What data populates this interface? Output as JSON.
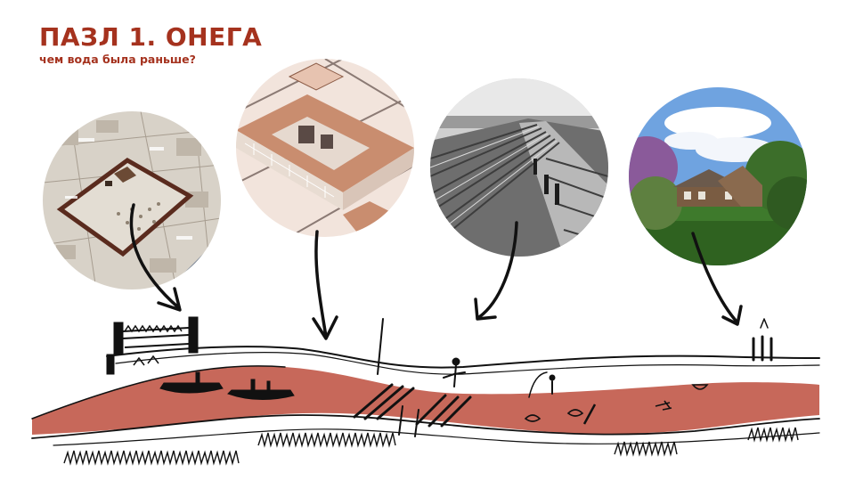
{
  "header": {
    "title": "ПАЗЛ 1. ОНЕГА",
    "subtitle": "чем вода была раньше?"
  },
  "colors": {
    "accent": "#a5321e",
    "river": "#c7685a",
    "ink": "#111111"
  },
  "photos": [
    {
      "name": "fortress-map-illustration"
    },
    {
      "name": "merchant-courtyard-illustration"
    },
    {
      "name": "timber-rafting-photo"
    },
    {
      "name": "village-house-photo"
    }
  ]
}
